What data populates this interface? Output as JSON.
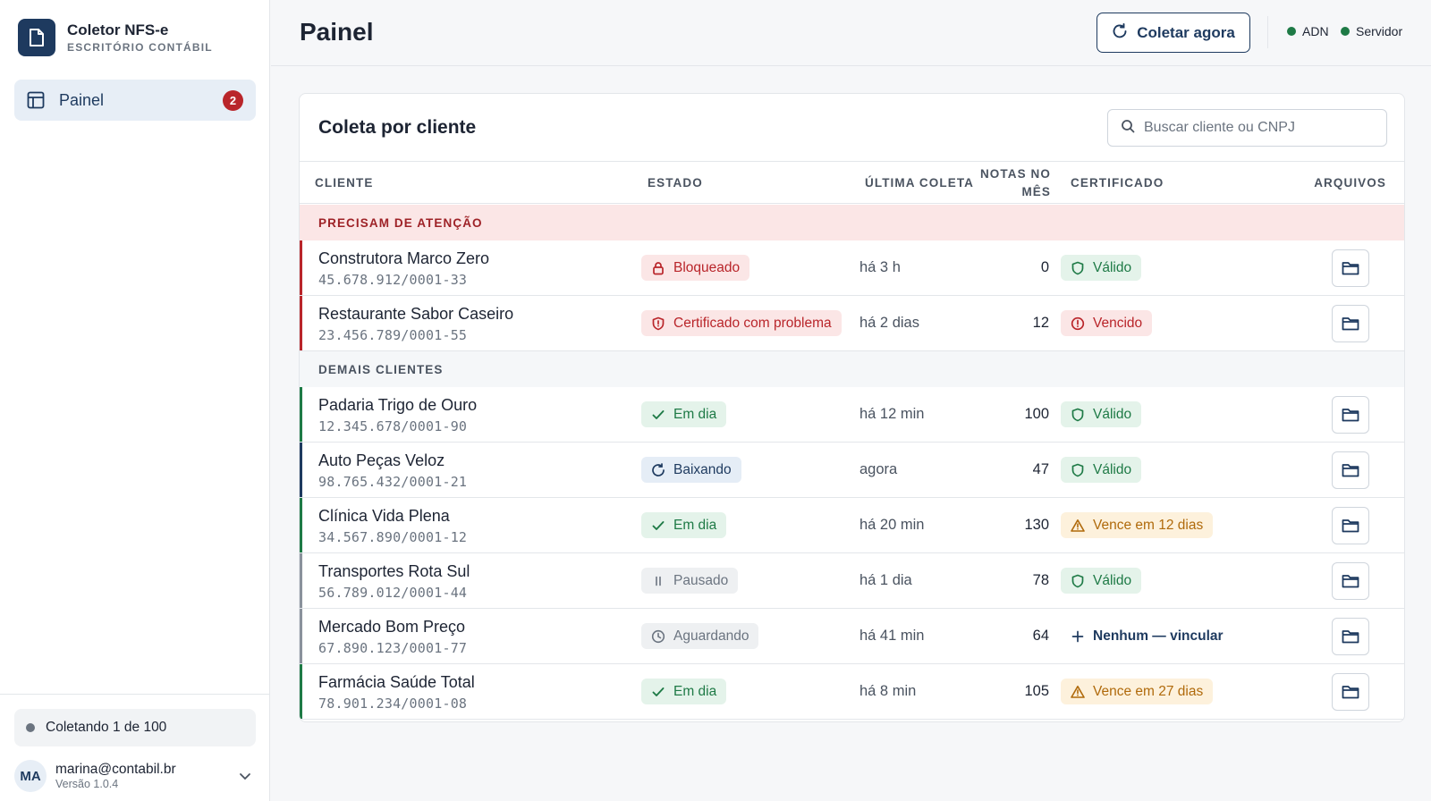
{
  "app": {
    "title": "Coletor NFS-e",
    "subtitle": "ESCRITÓRIO CONTÁBIL"
  },
  "sidebar": {
    "items": [
      {
        "label": "Painel",
        "badge": "2"
      }
    ],
    "collect_status": "Coletando 1 de 100",
    "user": {
      "initials": "MA",
      "email": "marina@contabil.br",
      "version": "Versão 1.0.4"
    }
  },
  "header": {
    "title": "Painel",
    "collect_button": "Coletar agora",
    "services": [
      {
        "label": "ADN",
        "status_color": "#1e7a46"
      },
      {
        "label": "Servidor",
        "status_color": "#1e7a46"
      }
    ]
  },
  "card": {
    "title": "Coleta por cliente",
    "search_placeholder": "Buscar cliente ou CNPJ",
    "columns": {
      "client": "CLIENTE",
      "status": "ESTADO",
      "last": "ÚLTIMA COLETA",
      "notes_1": "NOTAS NO",
      "notes_2": "MÊS",
      "cert": "CERTIFICADO",
      "files": "ARQUIVOS"
    },
    "groups": {
      "attention": "PRECISAM DE ATENÇÃO",
      "others": "DEMAIS CLIENTES"
    },
    "attention_rows": [
      {
        "name": "Construtora Marco Zero",
        "cnpj": "45.678.912/0001-33",
        "status": "Bloqueado",
        "status_icon": "lock-icon",
        "status_tone": "red",
        "last": "há 3 h",
        "notes": "0",
        "cert": "Válido",
        "cert_icon": "shield-icon",
        "cert_tone": "green",
        "bar_color": "#b9252a"
      },
      {
        "name": "Restaurante Sabor Caseiro",
        "cnpj": "23.456.789/0001-55",
        "status": "Certificado com problema",
        "status_icon": "shield-alert-icon",
        "status_tone": "red",
        "last": "há 2 dias",
        "notes": "12",
        "cert": "Vencido",
        "cert_icon": "alert-circle-icon",
        "cert_tone": "red",
        "bar_color": "#b9252a"
      }
    ],
    "other_rows": [
      {
        "name": "Padaria Trigo de Ouro",
        "cnpj": "12.345.678/0001-90",
        "status": "Em dia",
        "status_icon": "check-icon",
        "status_tone": "green",
        "last": "há 12 min",
        "notes": "100",
        "cert": "Válido",
        "cert_icon": "shield-icon",
        "cert_tone": "green",
        "bar_color": "#1e7a46"
      },
      {
        "name": "Auto Peças Veloz",
        "cnpj": "98.765.432/0001-21",
        "status": "Baixando",
        "status_icon": "refresh-icon",
        "status_tone": "blue",
        "last": "agora",
        "notes": "47",
        "cert": "Válido",
        "cert_icon": "shield-icon",
        "cert_tone": "green",
        "bar_color": "#1e3a5f"
      },
      {
        "name": "Clínica Vida Plena",
        "cnpj": "34.567.890/0001-12",
        "status": "Em dia",
        "status_icon": "check-icon",
        "status_tone": "green",
        "last": "há 20 min",
        "notes": "130",
        "cert": "Vence em 12 dias",
        "cert_icon": "warning-icon",
        "cert_tone": "amber",
        "bar_color": "#1e7a46"
      },
      {
        "name": "Transportes Rota Sul",
        "cnpj": "56.789.012/0001-44",
        "status": "Pausado",
        "status_icon": "pause-icon",
        "status_tone": "gray",
        "last": "há 1 dia",
        "notes": "78",
        "cert": "Válido",
        "cert_icon": "shield-icon",
        "cert_tone": "green",
        "bar_color": "#8a929c"
      },
      {
        "name": "Mercado Bom Preço",
        "cnpj": "67.890.123/0001-77",
        "status": "Aguardando",
        "status_icon": "clock-icon",
        "status_tone": "gray",
        "last": "há 41 min",
        "notes": "64",
        "cert": "Nenhum — vincular",
        "cert_icon": "plus-icon",
        "cert_tone": "link",
        "bar_color": "#8a929c"
      },
      {
        "name": "Farmácia Saúde Total",
        "cnpj": "78.901.234/0001-08",
        "status": "Em dia",
        "status_icon": "check-icon",
        "status_tone": "green",
        "last": "há 8 min",
        "notes": "105",
        "cert": "Vence em 27 dias",
        "cert_icon": "warning-icon",
        "cert_tone": "amber",
        "bar_color": "#1e7a46"
      }
    ]
  }
}
